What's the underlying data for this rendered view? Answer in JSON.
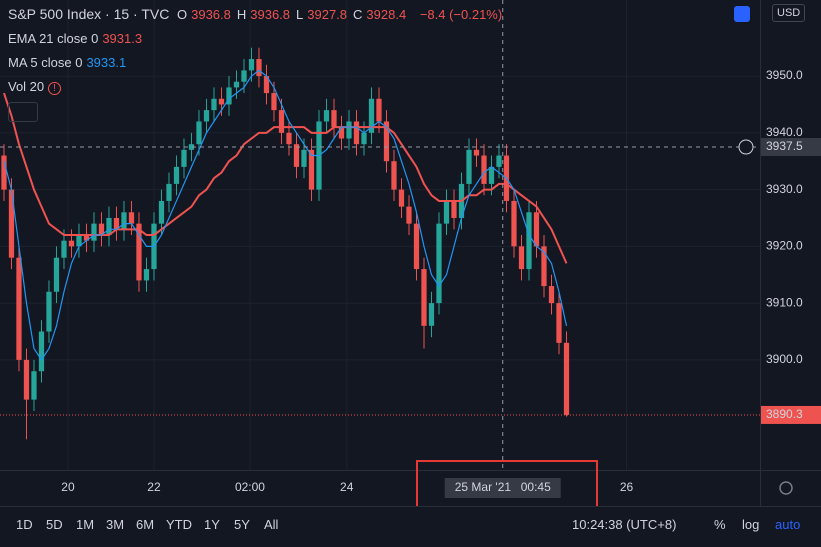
{
  "chart_data": {
    "type": "candlestick",
    "title": "S&P 500 Index · 15 · TVC",
    "legend_values": [
      {
        "label": "O",
        "value": 3936.8
      },
      {
        "label": "H",
        "value": 3936.8
      },
      {
        "label": "L",
        "value": 3927.8
      },
      {
        "label": "C",
        "value": 3928.4
      }
    ],
    "change": "−8.4 (−0.21%)",
    "currency": "USD",
    "up_color": "#26a69a",
    "down_color": "#ef5350",
    "open": [
      3936,
      3930,
      3918,
      3900,
      3893,
      3898,
      3905,
      3912,
      3918,
      3921,
      3920,
      3922,
      3921,
      3924,
      3922,
      3925,
      3923,
      3926,
      3924,
      3914,
      3916,
      3924,
      3928,
      3931,
      3934,
      3937,
      3938,
      3942,
      3944,
      3946,
      3945,
      3948,
      3949,
      3951,
      3953,
      3950,
      3947,
      3944,
      3940,
      3938,
      3934,
      3937,
      3930,
      3942,
      3944,
      3941,
      3939,
      3942,
      3938,
      3940,
      3946,
      3942,
      3935,
      3930,
      3927,
      3924,
      3916,
      3906,
      3910,
      3924,
      3928,
      3925,
      3931,
      3937,
      3936,
      3931,
      3934,
      3936,
      3928,
      3920,
      3916,
      3926,
      3920,
      3913,
      3910,
      3903
    ],
    "high": [
      3938,
      3932,
      3920,
      3902,
      3900,
      3907,
      3914,
      3920,
      3923,
      3923,
      3924,
      3924,
      3926,
      3926,
      3927,
      3927,
      3928,
      3928,
      3926,
      3918,
      3926,
      3930,
      3933,
      3936,
      3939,
      3940,
      3944,
      3946,
      3948,
      3948,
      3950,
      3951,
      3953,
      3955,
      3955,
      3952,
      3949,
      3946,
      3942,
      3940,
      3939,
      3939,
      3944,
      3946,
      3946,
      3943,
      3944,
      3944,
      3942,
      3948,
      3948,
      3944,
      3937,
      3932,
      3929,
      3926,
      3918,
      3912,
      3926,
      3930,
      3930,
      3933,
      3939,
      3939,
      3938,
      3936,
      3938,
      3938,
      3930,
      3922,
      3928,
      3928,
      3922,
      3915,
      3912,
      3905
    ],
    "low": [
      3928,
      3916,
      3898,
      3886,
      3891,
      3896,
      3903,
      3910,
      3916,
      3918,
      3918,
      3919,
      3919,
      3920,
      3920,
      3921,
      3921,
      3922,
      3912,
      3912,
      3914,
      3922,
      3926,
      3929,
      3932,
      3935,
      3936,
      3940,
      3942,
      3943,
      3943,
      3946,
      3947,
      3949,
      3948,
      3945,
      3942,
      3938,
      3936,
      3932,
      3932,
      3928,
      3928,
      3940,
      3939,
      3937,
      3937,
      3936,
      3936,
      3938,
      3940,
      3933,
      3928,
      3925,
      3922,
      3914,
      3902,
      3904,
      3908,
      3922,
      3923,
      3923,
      3929,
      3934,
      3929,
      3929,
      3932,
      3926,
      3918,
      3914,
      3914,
      3918,
      3911,
      3908,
      3901,
      3890
    ],
    "close": [
      3930,
      3918,
      3900,
      3893,
      3898,
      3905,
      3912,
      3918,
      3921,
      3920,
      3922,
      3921,
      3924,
      3922,
      3925,
      3923,
      3926,
      3924,
      3914,
      3916,
      3924,
      3928,
      3931,
      3934,
      3937,
      3938,
      3942,
      3944,
      3946,
      3945,
      3948,
      3949,
      3951,
      3953,
      3950,
      3947,
      3944,
      3940,
      3938,
      3934,
      3937,
      3930,
      3942,
      3944,
      3941,
      3939,
      3942,
      3938,
      3940,
      3946,
      3942,
      3935,
      3930,
      3927,
      3924,
      3916,
      3906,
      3910,
      3924,
      3928,
      3925,
      3931,
      3937,
      3936,
      3931,
      3934,
      3936,
      3928,
      3920,
      3916,
      3926,
      3920,
      3913,
      3910,
      3903,
      3890.3
    ],
    "series": [
      {
        "name": "EMA 21 close 0",
        "legend_value": 3931.3,
        "color": "#ef5350",
        "values": [
          3947,
          3943,
          3938,
          3934,
          3930,
          3927,
          3924,
          3923,
          3922,
          3922,
          3922,
          3922,
          3922,
          3922,
          3922,
          3923,
          3923,
          3923,
          3923,
          3922,
          3922,
          3923,
          3924,
          3925,
          3926,
          3927,
          3929,
          3930,
          3932,
          3933,
          3935,
          3936,
          3938,
          3939,
          3940,
          3940,
          3941,
          3941,
          3941,
          3941,
          3941,
          3940,
          3940,
          3940,
          3941,
          3941,
          3941,
          3941,
          3941,
          3941,
          3941,
          3941,
          3940,
          3938,
          3936,
          3934,
          3931,
          3929,
          3928,
          3928,
          3928,
          3928,
          3929,
          3929,
          3930,
          3930,
          3931,
          3931,
          3930,
          3929,
          3928,
          3927,
          3925,
          3923,
          3920,
          3917
        ]
      },
      {
        "name": "MA 5 close 0",
        "legend_value": 3933.1,
        "color": "#2196f3",
        "values": [
          3935,
          3930,
          3920,
          3910,
          3902,
          3900,
          3902,
          3906,
          3912,
          3917,
          3920,
          3921,
          3922,
          3922,
          3923,
          3923,
          3924,
          3924,
          3922,
          3920,
          3920,
          3922,
          3925,
          3928,
          3931,
          3934,
          3937,
          3940,
          3942,
          3944,
          3946,
          3947,
          3948,
          3950,
          3951,
          3950,
          3948,
          3945,
          3942,
          3940,
          3938,
          3936,
          3936,
          3937,
          3939,
          3941,
          3941,
          3941,
          3940,
          3941,
          3942,
          3941,
          3939,
          3935,
          3931,
          3926,
          3920,
          3915,
          3913,
          3915,
          3920,
          3925,
          3929,
          3931,
          3933,
          3934,
          3933,
          3932,
          3930,
          3926,
          3922,
          3920,
          3919,
          3917,
          3912,
          3906
        ]
      }
    ],
    "volume_label": "Vol 20",
    "xlim": [
      -0.53,
      100.8
    ],
    "xticks": [
      {
        "value": 8.53,
        "label": "20"
      },
      {
        "value": 20,
        "label": "22"
      },
      {
        "value": 32.8,
        "label": "02:00"
      },
      {
        "value": 45.7,
        "label": "24"
      },
      {
        "value": 83,
        "label": "26"
      }
    ],
    "ylim": [
      3880.6,
      3963.4
    ],
    "yticks": [
      {
        "value": 3900,
        "label": "3900.0"
      },
      {
        "value": 3910,
        "label": "3910.0"
      },
      {
        "value": 3920,
        "label": "3920.0"
      },
      {
        "value": 3930,
        "label": "3930.0"
      },
      {
        "value": 3940,
        "label": "3940.0"
      },
      {
        "value": 3950,
        "label": "3950.0"
      }
    ],
    "grid": true,
    "crosshair": {
      "x": 66.5,
      "date": "25 Mar '21",
      "time": "00:45",
      "price": 3937.5
    },
    "last_price": 3890.3,
    "timeframes": [
      "1D",
      "5D",
      "1M",
      "3M",
      "6M",
      "YTD",
      "1Y",
      "5Y",
      "All"
    ],
    "clock": "10:24:38 (UTC+8)",
    "scale_options": [
      "%",
      "log",
      "auto"
    ]
  }
}
